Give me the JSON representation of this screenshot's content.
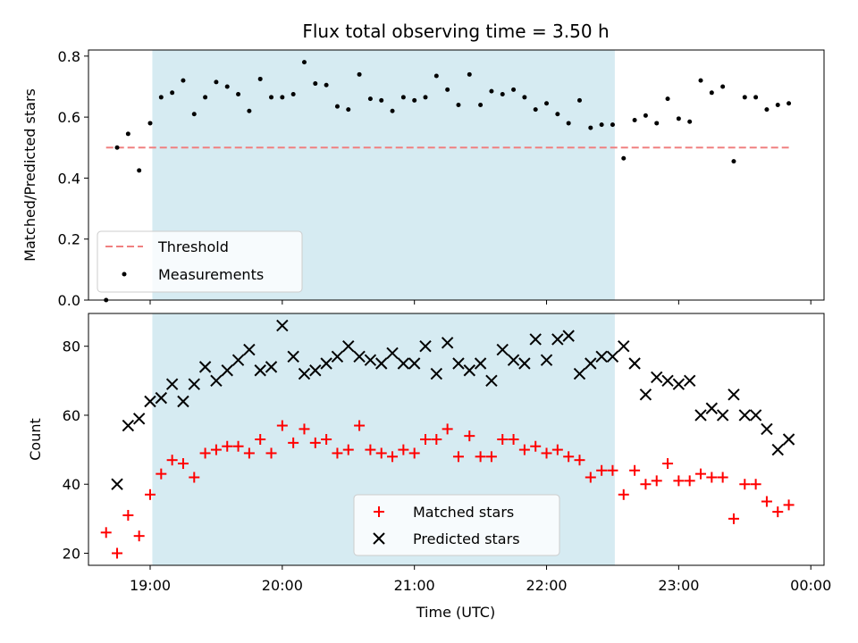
{
  "chart_data": [
    {
      "type": "scatter",
      "title": "Flux total observing time = 3.50 h",
      "xlabel": "",
      "ylabel": "Matched/Predicted stars",
      "xlim": [
        "18:32",
        "00:06"
      ],
      "ylim": [
        0,
        0.82
      ],
      "yticks": [
        "0.0",
        "0.2",
        "0.4",
        "0.6",
        "0.8"
      ],
      "highlight_span": [
        "19:01",
        "22:31"
      ],
      "highlight_color": "#add8e6",
      "grid": false,
      "legend_position": "lower-left",
      "threshold": {
        "name": "Threshold",
        "value": 0.5,
        "x_start": "18:40",
        "x_end": "23:50",
        "color": "#f08080",
        "style": "dashed"
      },
      "series": [
        {
          "name": "Measurements",
          "color": "#000000",
          "marker": "dot",
          "x": [
            "18:40",
            "18:45",
            "18:50",
            "18:55",
            "19:00",
            "19:05",
            "19:10",
            "19:15",
            "19:20",
            "19:25",
            "19:30",
            "19:35",
            "19:40",
            "19:45",
            "19:50",
            "19:55",
            "20:00",
            "20:05",
            "20:10",
            "20:15",
            "20:20",
            "20:25",
            "20:30",
            "20:35",
            "20:40",
            "20:45",
            "20:50",
            "20:55",
            "21:00",
            "21:05",
            "21:10",
            "21:15",
            "21:20",
            "21:25",
            "21:30",
            "21:35",
            "21:40",
            "21:45",
            "21:50",
            "21:55",
            "22:00",
            "22:05",
            "22:10",
            "22:15",
            "22:20",
            "22:25",
            "22:30",
            "22:35",
            "22:40",
            "22:45",
            "22:50",
            "22:55",
            "23:00",
            "23:05",
            "23:10",
            "23:15",
            "23:20",
            "23:25",
            "23:30",
            "23:35",
            "23:40",
            "23:45",
            "23:50"
          ],
          "y": [
            0.0,
            0.5,
            0.545,
            0.425,
            0.58,
            0.665,
            0.68,
            0.72,
            0.61,
            0.665,
            0.715,
            0.7,
            0.675,
            0.62,
            0.725,
            0.665,
            0.665,
            0.675,
            0.78,
            0.71,
            0.705,
            0.635,
            0.625,
            0.74,
            0.66,
            0.655,
            0.62,
            0.665,
            0.655,
            0.665,
            0.735,
            0.69,
            0.64,
            0.74,
            0.64,
            0.685,
            0.675,
            0.69,
            0.665,
            0.625,
            0.645,
            0.61,
            0.58,
            0.655,
            0.565,
            0.575,
            0.575,
            0.465,
            0.59,
            0.605,
            0.58,
            0.66,
            0.595,
            0.585,
            0.72,
            0.68,
            0.7,
            0.455,
            0.665,
            0.665,
            0.625,
            0.64,
            0.645
          ]
        }
      ]
    },
    {
      "type": "scatter",
      "title": "",
      "xlabel": "Time (UTC)",
      "ylabel": "Count",
      "xlim": [
        "18:32",
        "00:06"
      ],
      "ylim": [
        16.5,
        89.5
      ],
      "yticks": [
        "20",
        "40",
        "60",
        "80"
      ],
      "xticks": [
        "19:00",
        "20:00",
        "21:00",
        "22:00",
        "23:00",
        "00:00"
      ],
      "highlight_span": [
        "19:01",
        "22:31"
      ],
      "highlight_color": "#add8e6",
      "grid": false,
      "legend_position": "lower-center",
      "series": [
        {
          "name": "Matched stars",
          "color": "#ff0000",
          "marker": "plus",
          "x": [
            "18:40",
            "18:45",
            "18:50",
            "18:55",
            "19:00",
            "19:05",
            "19:10",
            "19:15",
            "19:20",
            "19:25",
            "19:30",
            "19:35",
            "19:40",
            "19:45",
            "19:50",
            "19:55",
            "20:00",
            "20:05",
            "20:10",
            "20:15",
            "20:20",
            "20:25",
            "20:30",
            "20:35",
            "20:40",
            "20:45",
            "20:50",
            "20:55",
            "21:00",
            "21:05",
            "21:10",
            "21:15",
            "21:20",
            "21:25",
            "21:30",
            "21:35",
            "21:40",
            "21:45",
            "21:50",
            "21:55",
            "22:00",
            "22:05",
            "22:10",
            "22:15",
            "22:20",
            "22:25",
            "22:30",
            "22:35",
            "22:40",
            "22:45",
            "22:50",
            "22:55",
            "23:00",
            "23:05",
            "23:10",
            "23:15",
            "23:20",
            "23:25",
            "23:30",
            "23:35",
            "23:40",
            "23:45",
            "23:50"
          ],
          "y": [
            26,
            20,
            31,
            25,
            37,
            43,
            47,
            46,
            42,
            49,
            50,
            51,
            51,
            49,
            53,
            49,
            57,
            52,
            56,
            52,
            53,
            49,
            50,
            57,
            50,
            49,
            48,
            50,
            49,
            53,
            53,
            56,
            48,
            54,
            48,
            48,
            53,
            53,
            50,
            51,
            49,
            50,
            48,
            47,
            42,
            44,
            44,
            37,
            44,
            40,
            41,
            46,
            41,
            41,
            43,
            42,
            42,
            30,
            40,
            40,
            35,
            32,
            34
          ]
        },
        {
          "name": "Predicted stars",
          "color": "#000000",
          "marker": "x",
          "x": [
            "18:45",
            "18:50",
            "18:55",
            "19:00",
            "19:05",
            "19:10",
            "19:15",
            "19:20",
            "19:25",
            "19:30",
            "19:35",
            "19:40",
            "19:45",
            "19:50",
            "19:55",
            "20:00",
            "20:05",
            "20:10",
            "20:15",
            "20:20",
            "20:25",
            "20:30",
            "20:35",
            "20:40",
            "20:45",
            "20:50",
            "20:55",
            "21:00",
            "21:05",
            "21:10",
            "21:15",
            "21:20",
            "21:25",
            "21:30",
            "21:35",
            "21:40",
            "21:45",
            "21:50",
            "21:55",
            "22:00",
            "22:05",
            "22:10",
            "22:15",
            "22:20",
            "22:25",
            "22:30",
            "22:35",
            "22:40",
            "22:45",
            "22:50",
            "22:55",
            "23:00",
            "23:05",
            "23:10",
            "23:15",
            "23:20",
            "23:25",
            "23:30",
            "23:35",
            "23:40",
            "23:45",
            "23:50"
          ],
          "y": [
            40,
            57,
            59,
            64,
            65,
            69,
            64,
            69,
            74,
            70,
            73,
            76,
            79,
            73,
            74,
            86,
            77,
            72,
            73,
            75,
            77,
            80,
            77,
            76,
            75,
            78,
            75,
            75,
            80,
            72,
            81,
            75,
            73,
            75,
            70,
            79,
            76,
            75,
            82,
            76,
            82,
            83,
            72,
            75,
            77,
            77,
            80,
            75,
            66,
            71,
            70,
            69,
            70,
            60,
            62,
            60,
            66,
            60,
            60,
            56,
            50,
            53
          ]
        }
      ]
    }
  ]
}
